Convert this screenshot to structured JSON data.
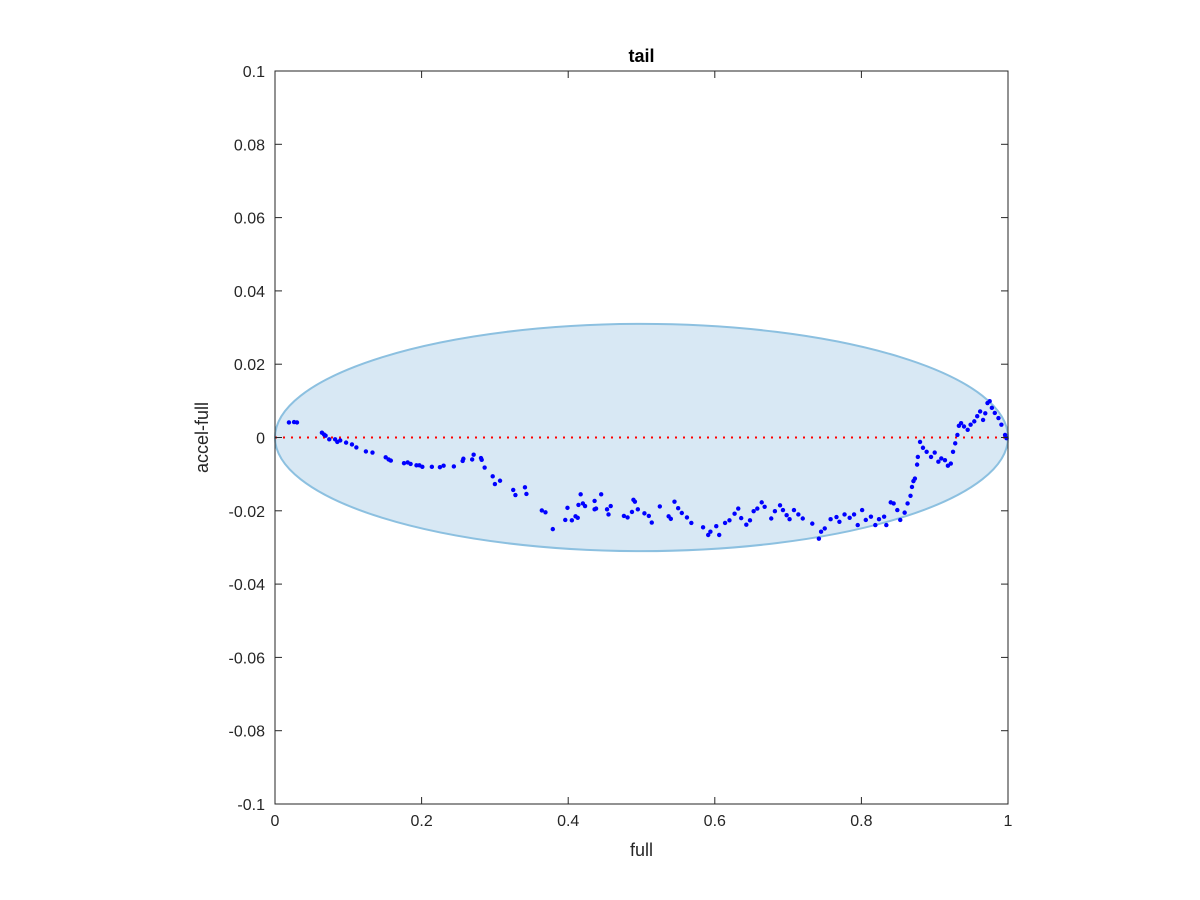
{
  "chart_data": {
    "type": "scatter",
    "title": "tail",
    "xlabel": "full",
    "ylabel": "accel-full",
    "xlim": [
      0,
      1
    ],
    "ylim": [
      -0.1,
      0.1
    ],
    "grid": false,
    "x_ticks": [
      0,
      0.2,
      0.4,
      0.6,
      0.8,
      1
    ],
    "x_tick_labels": [
      "0",
      "0.2",
      "0.4",
      "0.6",
      "0.8",
      "1"
    ],
    "y_ticks": [
      0.1,
      0.08,
      0.06,
      0.04,
      0.02,
      0,
      -0.02,
      -0.04,
      -0.06,
      -0.08,
      -0.1
    ],
    "y_tick_labels": [
      "0.1",
      "0.08",
      "0.06",
      "0.04",
      "0.02",
      "0",
      "-0.02",
      "-0.04",
      "-0.06",
      "-0.08",
      "-0.1"
    ],
    "colors": {
      "points": "#0000ff",
      "ellipse_fill": "#d8e8f4",
      "ellipse_edge": "#8cc0e0",
      "reference_line": "#ff0000",
      "axes": "#262626"
    },
    "reference_line": {
      "y": 0,
      "style": "dotted"
    },
    "ellipse": {
      "center": [
        0.5,
        0
      ],
      "semi_axes": [
        0.5,
        0.031
      ]
    },
    "points": [
      [
        0.019,
        0.0041
      ],
      [
        0.026,
        0.0042
      ],
      [
        0.03,
        0.0041
      ],
      [
        0.064,
        0.0013
      ],
      [
        0.067,
        0.0008
      ],
      [
        0.069,
        0.0005
      ],
      [
        0.074,
        -0.0005
      ],
      [
        0.082,
        -0.0005
      ],
      [
        0.085,
        -0.0012
      ],
      [
        0.089,
        -0.0008
      ],
      [
        0.097,
        -0.0014
      ],
      [
        0.105,
        -0.0019
      ],
      [
        0.111,
        -0.0027
      ],
      [
        0.124,
        -0.0038
      ],
      [
        0.133,
        -0.0041
      ],
      [
        0.151,
        -0.0054
      ],
      [
        0.155,
        -0.006
      ],
      [
        0.158,
        -0.0063
      ],
      [
        0.176,
        -0.007
      ],
      [
        0.181,
        -0.0068
      ],
      [
        0.185,
        -0.0072
      ],
      [
        0.193,
        -0.0076
      ],
      [
        0.197,
        -0.0076
      ],
      [
        0.201,
        -0.008
      ],
      [
        0.214,
        -0.008
      ],
      [
        0.225,
        -0.0081
      ],
      [
        0.23,
        -0.0077
      ],
      [
        0.244,
        -0.0079
      ],
      [
        0.256,
        -0.0064
      ],
      [
        0.257,
        -0.0058
      ],
      [
        0.269,
        -0.006
      ],
      [
        0.271,
        -0.0047
      ],
      [
        0.281,
        -0.0056
      ],
      [
        0.282,
        -0.0061
      ],
      [
        0.286,
        -0.0082
      ],
      [
        0.297,
        -0.0106
      ],
      [
        0.3,
        -0.0127
      ],
      [
        0.307,
        -0.0118
      ],
      [
        0.325,
        -0.0143
      ],
      [
        0.328,
        -0.0157
      ],
      [
        0.341,
        -0.0136
      ],
      [
        0.343,
        -0.0154
      ],
      [
        0.364,
        -0.0199
      ],
      [
        0.369,
        -0.0204
      ],
      [
        0.379,
        -0.025
      ],
      [
        0.396,
        -0.0225
      ],
      [
        0.399,
        -0.0192
      ],
      [
        0.405,
        -0.0226
      ],
      [
        0.41,
        -0.0215
      ],
      [
        0.413,
        -0.0219
      ],
      [
        0.414,
        -0.0184
      ],
      [
        0.417,
        -0.0155
      ],
      [
        0.42,
        -0.018
      ],
      [
        0.423,
        -0.0187
      ],
      [
        0.436,
        -0.0196
      ],
      [
        0.436,
        -0.0173
      ],
      [
        0.438,
        -0.0194
      ],
      [
        0.445,
        -0.0155
      ],
      [
        0.453,
        -0.0196
      ],
      [
        0.455,
        -0.021
      ],
      [
        0.458,
        -0.0187
      ],
      [
        0.476,
        -0.0214
      ],
      [
        0.481,
        -0.0218
      ],
      [
        0.487,
        -0.0203
      ],
      [
        0.489,
        -0.017
      ],
      [
        0.491,
        -0.0175
      ],
      [
        0.495,
        -0.0196
      ],
      [
        0.504,
        -0.0207
      ],
      [
        0.51,
        -0.0214
      ],
      [
        0.514,
        -0.0232
      ],
      [
        0.525,
        -0.0188
      ],
      [
        0.537,
        -0.0215
      ],
      [
        0.54,
        -0.0222
      ],
      [
        0.545,
        -0.0175
      ],
      [
        0.55,
        -0.0193
      ],
      [
        0.555,
        -0.0206
      ],
      [
        0.562,
        -0.0218
      ],
      [
        0.568,
        -0.0233
      ],
      [
        0.584,
        -0.0245
      ],
      [
        0.591,
        -0.0266
      ],
      [
        0.594,
        -0.0257
      ],
      [
        0.602,
        -0.0242
      ],
      [
        0.606,
        -0.0266
      ],
      [
        0.614,
        -0.0233
      ],
      [
        0.62,
        -0.0226
      ],
      [
        0.627,
        -0.0208
      ],
      [
        0.632,
        -0.0194
      ],
      [
        0.636,
        -0.022
      ],
      [
        0.643,
        -0.0238
      ],
      [
        0.648,
        -0.0226
      ],
      [
        0.653,
        -0.0201
      ],
      [
        0.658,
        -0.0194
      ],
      [
        0.664,
        -0.0177
      ],
      [
        0.668,
        -0.0189
      ],
      [
        0.677,
        -0.0221
      ],
      [
        0.682,
        -0.0201
      ],
      [
        0.689,
        -0.0185
      ],
      [
        0.693,
        -0.0198
      ],
      [
        0.698,
        -0.0212
      ],
      [
        0.702,
        -0.0223
      ],
      [
        0.708,
        -0.0198
      ],
      [
        0.714,
        -0.021
      ],
      [
        0.72,
        -0.0221
      ],
      [
        0.733,
        -0.0235
      ],
      [
        0.742,
        -0.0276
      ],
      [
        0.745,
        -0.0257
      ],
      [
        0.75,
        -0.0248
      ],
      [
        0.758,
        -0.0223
      ],
      [
        0.766,
        -0.0217
      ],
      [
        0.77,
        -0.023
      ],
      [
        0.777,
        -0.021
      ],
      [
        0.784,
        -0.0219
      ],
      [
        0.79,
        -0.021
      ],
      [
        0.795,
        -0.0239
      ],
      [
        0.801,
        -0.0198
      ],
      [
        0.806,
        -0.0225
      ],
      [
        0.813,
        -0.0216
      ],
      [
        0.819,
        -0.0239
      ],
      [
        0.824,
        -0.0223
      ],
      [
        0.831,
        -0.0216
      ],
      [
        0.834,
        -0.0239
      ],
      [
        0.84,
        -0.0177
      ],
      [
        0.844,
        -0.018
      ],
      [
        0.849,
        -0.0198
      ],
      [
        0.853,
        -0.0225
      ],
      [
        0.859,
        -0.0205
      ],
      [
        0.863,
        -0.018
      ],
      [
        0.867,
        -0.0159
      ],
      [
        0.869,
        -0.0135
      ],
      [
        0.871,
        -0.0119
      ],
      [
        0.873,
        -0.0112
      ],
      [
        0.876,
        -0.0074
      ],
      [
        0.877,
        -0.0053
      ],
      [
        0.88,
        -0.0012
      ],
      [
        0.884,
        -0.0028
      ],
      [
        0.889,
        -0.0039
      ],
      [
        0.895,
        -0.0053
      ],
      [
        0.9,
        -0.0041
      ],
      [
        0.905,
        -0.0066
      ],
      [
        0.909,
        -0.0057
      ],
      [
        0.914,
        -0.0062
      ],
      [
        0.918,
        -0.0077
      ],
      [
        0.922,
        -0.0071
      ],
      [
        0.925,
        -0.0039
      ],
      [
        0.928,
        -0.0016
      ],
      [
        0.931,
        0.0007
      ],
      [
        0.933,
        0.0032
      ],
      [
        0.936,
        0.0039
      ],
      [
        0.94,
        0.003
      ],
      [
        0.945,
        0.0021
      ],
      [
        0.949,
        0.0035
      ],
      [
        0.954,
        0.0044
      ],
      [
        0.958,
        0.0058
      ],
      [
        0.962,
        0.0071
      ],
      [
        0.966,
        0.0048
      ],
      [
        0.969,
        0.0066
      ],
      [
        0.972,
        0.0094
      ],
      [
        0.975,
        0.0099
      ],
      [
        0.978,
        0.0081
      ],
      [
        0.982,
        0.0067
      ],
      [
        0.987,
        0.0053
      ],
      [
        0.991,
        0.0035
      ],
      [
        0.996,
        0.0007
      ],
      [
        0.998,
        -0.0002
      ]
    ]
  }
}
